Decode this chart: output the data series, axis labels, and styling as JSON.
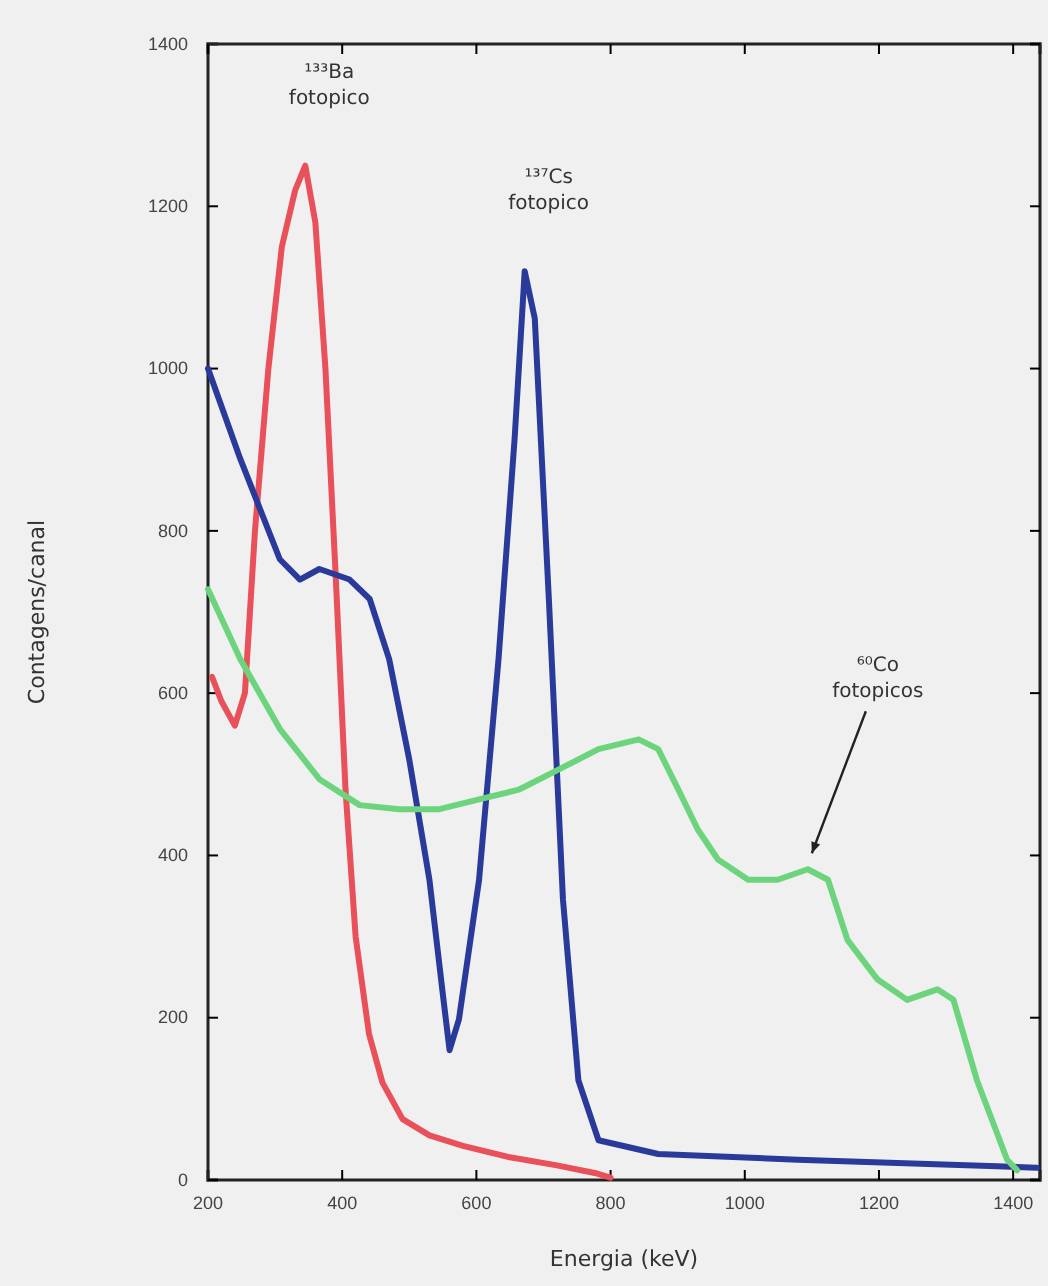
{
  "chart_data": {
    "type": "line",
    "xlabel": "Energia (keV)",
    "ylabel": "Contagens/canal",
    "xlim": [
      200,
      1440
    ],
    "ylim": [
      0,
      1400
    ],
    "xticks": [
      200,
      400,
      600,
      800,
      1000,
      1200,
      1400
    ],
    "yticks": [
      0,
      200,
      400,
      600,
      800,
      1000,
      1200,
      1400
    ],
    "grid": false,
    "line_style": "solid",
    "marker": "none",
    "series": [
      {
        "color": "#e8505a",
        "x": [
          206,
          220,
          240,
          255,
          270,
          290,
          310,
          330,
          345,
          360,
          375,
          390,
          405,
          420,
          440,
          460,
          490,
          530,
          580,
          650,
          720,
          780,
          800
        ],
        "values": [
          620,
          590,
          560,
          600,
          800,
          1000,
          1150,
          1220,
          1250,
          1180,
          1000,
          750,
          480,
          300,
          180,
          120,
          75,
          55,
          42,
          28,
          18,
          8,
          3
        ]
      },
      {
        "color": "#2a3a9a",
        "x": [
          200,
          248,
          307,
          337,
          366,
          411,
          441,
          470,
          500,
          530,
          551,
          560,
          574,
          604,
          633,
          657,
          672,
          687,
          708,
          729,
          752,
          782,
          871,
          1079,
          1376,
          1435
        ],
        "values": [
          1000,
          889,
          765,
          740,
          753,
          740,
          716,
          642,
          518,
          370,
          222,
          160,
          198,
          370,
          642,
          914,
          1120,
          1062,
          716,
          346,
          123,
          49,
          32,
          25,
          17,
          15
        ]
      },
      {
        "color": "#6cd47c",
        "x": [
          200,
          248,
          307,
          366,
          426,
          485,
          545,
          604,
          663,
          723,
          782,
          842,
          871,
          901,
          930,
          960,
          1005,
          1049,
          1094,
          1124,
          1153,
          1198,
          1242,
          1287,
          1311,
          1346,
          1391,
          1406
        ],
        "values": [
          728,
          642,
          556,
          494,
          462,
          457,
          457,
          469,
          481,
          506,
          531,
          543,
          531,
          481,
          432,
          395,
          370,
          370,
          383,
          370,
          296,
          247,
          222,
          235,
          222,
          123,
          25,
          12
        ]
      }
    ],
    "annotations": [
      {
        "text": "¹³³Ba fotopico",
        "x": 345,
        "y": 1250
      },
      {
        "text": "¹³⁷Cs fotopico",
        "x": 672,
        "y": 1120
      },
      {
        "text": "⁶⁰Co fotopicos",
        "x": 1094,
        "y": 383
      }
    ]
  }
}
